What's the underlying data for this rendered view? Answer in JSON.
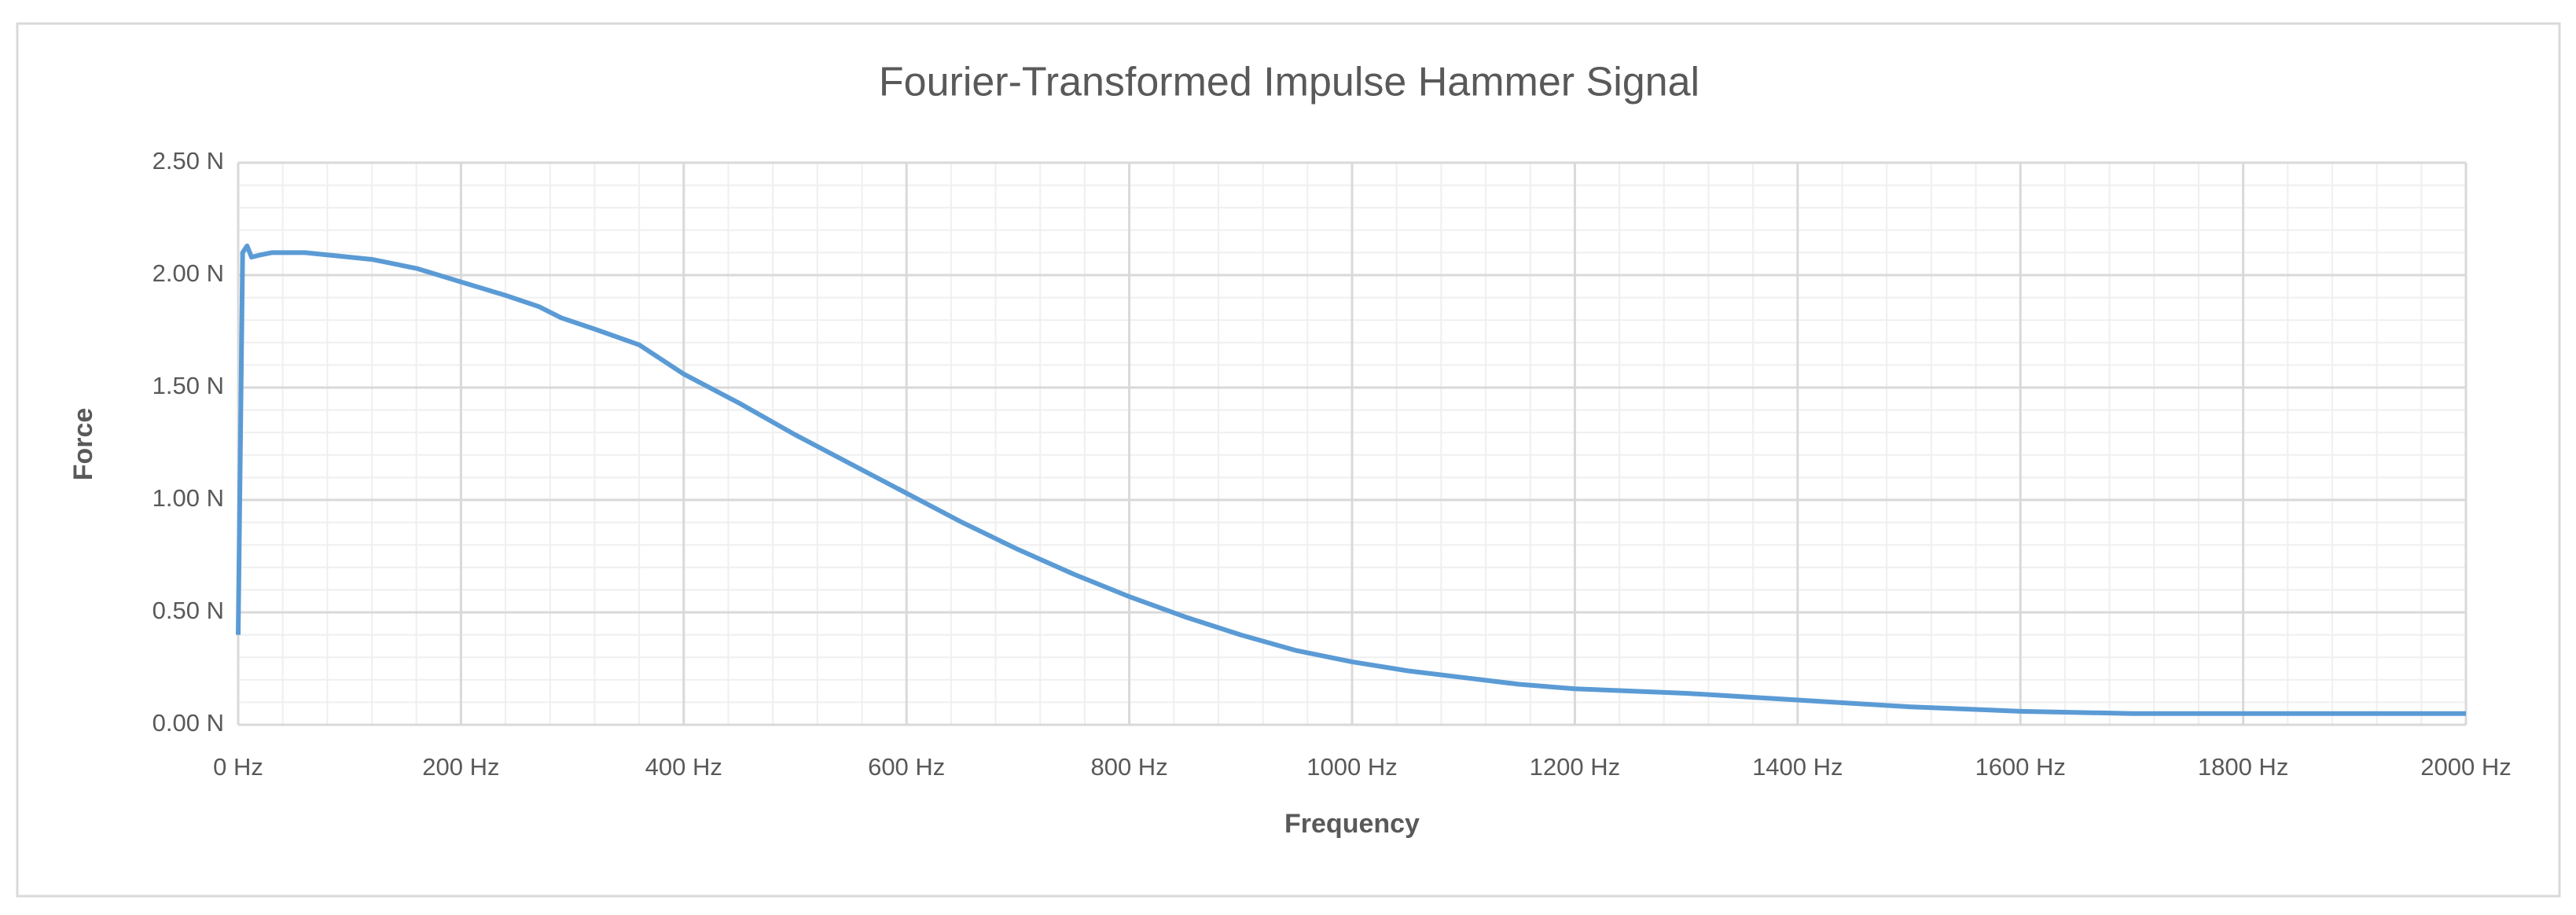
{
  "chart_data": {
    "type": "line",
    "title": "Fourier-Transformed Impulse Hammer Signal",
    "x_label": "Frequency",
    "y_label": "Force",
    "x": [
      0,
      4,
      8,
      12,
      20,
      30,
      45,
      60,
      80,
      120,
      160,
      200,
      240,
      270,
      290,
      320,
      360,
      400,
      450,
      500,
      550,
      600,
      650,
      700,
      750,
      800,
      850,
      900,
      950,
      1000,
      1050,
      1100,
      1150,
      1200,
      1300,
      1400,
      1500,
      1600,
      1700,
      1800,
      1900,
      2000
    ],
    "series": [
      {
        "name": "Force",
        "color": "#5b9bd5",
        "values": [
          0.4,
          2.1,
          2.13,
          2.08,
          2.09,
          2.1,
          2.1,
          2.1,
          2.09,
          2.07,
          2.03,
          1.97,
          1.91,
          1.86,
          1.81,
          1.76,
          1.69,
          1.56,
          1.43,
          1.29,
          1.16,
          1.03,
          0.9,
          0.78,
          0.67,
          0.57,
          0.48,
          0.4,
          0.33,
          0.28,
          0.24,
          0.21,
          0.18,
          0.16,
          0.14,
          0.11,
          0.08,
          0.06,
          0.05,
          0.05,
          0.05,
          0.05
        ]
      }
    ],
    "xlim": [
      0,
      2000
    ],
    "ylim": [
      0,
      2.5
    ],
    "xticks": [
      {
        "value": 0,
        "label": "0 Hz"
      },
      {
        "value": 200,
        "label": "200 Hz"
      },
      {
        "value": 400,
        "label": "400 Hz"
      },
      {
        "value": 600,
        "label": "600 Hz"
      },
      {
        "value": 800,
        "label": "800 Hz"
      },
      {
        "value": 1000,
        "label": "1000 Hz"
      },
      {
        "value": 1200,
        "label": "1200 Hz"
      },
      {
        "value": 1400,
        "label": "1400 Hz"
      },
      {
        "value": 1600,
        "label": "1600 Hz"
      },
      {
        "value": 1800,
        "label": "1800 Hz"
      },
      {
        "value": 2000,
        "label": "2000 Hz"
      }
    ],
    "yticks": [
      {
        "value": 0,
        "label": "0.00 N"
      },
      {
        "value": 0.5,
        "label": "0.50 N"
      },
      {
        "value": 1,
        "label": "1.00 N"
      },
      {
        "value": 1.5,
        "label": "1.50 N"
      },
      {
        "value": 2,
        "label": "2.00 N"
      },
      {
        "value": 2.5,
        "label": "2.50 N"
      }
    ],
    "x_minor_ticks": [
      40,
      80,
      120,
      160,
      240,
      280,
      320,
      360,
      440,
      480,
      520,
      560,
      640,
      680,
      720,
      760,
      840,
      880,
      920,
      960,
      1040,
      1080,
      1120,
      1160,
      1240,
      1280,
      1320,
      1360,
      1440,
      1480,
      1520,
      1560,
      1640,
      1680,
      1720,
      1760,
      1840,
      1880,
      1920,
      1960
    ],
    "y_minor_ticks": [
      0.1,
      0.2,
      0.3,
      0.4,
      0.6,
      0.7,
      0.8,
      0.9,
      1.1,
      1.2,
      1.3,
      1.4,
      1.6,
      1.7,
      1.8,
      1.9,
      2.1,
      2.2,
      2.3,
      2.4
    ],
    "grid": true
  }
}
